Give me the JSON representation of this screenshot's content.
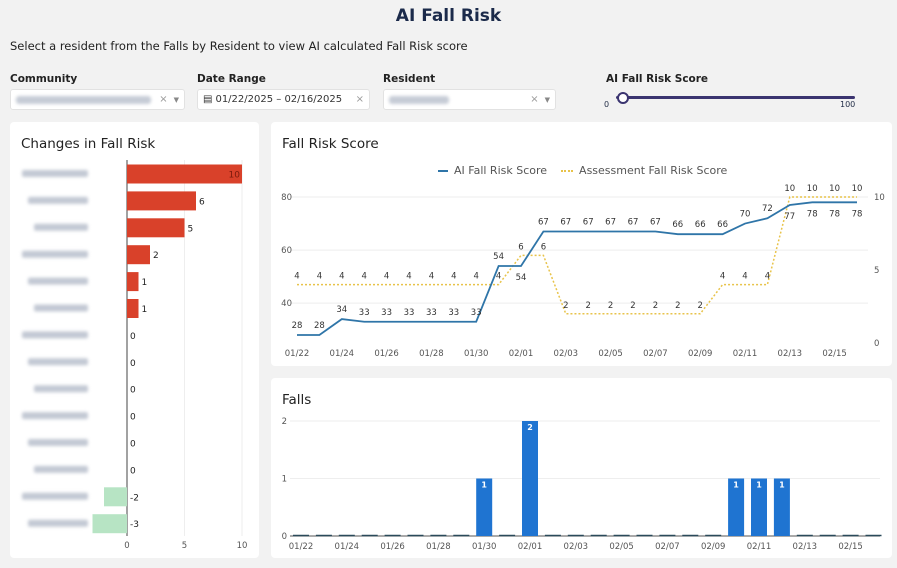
{
  "header": {
    "title": "AI Fall Risk",
    "subtitle": "Select a resident from the Falls by Resident to view AI calculated Fall Risk score"
  },
  "filters": {
    "community": {
      "label": "Community"
    },
    "date_range": {
      "label": "Date Range",
      "value": "01/22/2025 – 02/16/2025",
      "icon": "calendar-icon"
    },
    "resident": {
      "label": "Resident"
    },
    "score_slider": {
      "label": "AI Fall Risk Score",
      "min_label": "0",
      "max_label": "100",
      "value": 0,
      "min": 0,
      "max": 100
    }
  },
  "colors": {
    "increase": "#d9412a",
    "decrease": "#b7e4c4",
    "ai_line": "#2f75a8",
    "assessment_line": "#e8c34a",
    "falls_bar": "#1f74d1"
  },
  "chart_data": [
    {
      "type": "bar",
      "title": "Changes in Fall Risk",
      "orientation": "horizontal",
      "values": [
        10,
        6,
        5,
        2,
        1,
        1,
        0,
        0,
        0,
        0,
        0,
        0,
        -2,
        -3
      ],
      "xticks": [
        "0",
        "5",
        "10"
      ],
      "xlim": [
        -3.5,
        10
      ]
    },
    {
      "type": "line",
      "title": "Fall Risk Score",
      "x": [
        "01/22",
        "01/23",
        "01/24",
        "01/25",
        "01/26",
        "01/27",
        "01/28",
        "01/29",
        "01/30",
        "01/31",
        "02/01",
        "02/02",
        "02/03",
        "02/04",
        "02/05",
        "02/06",
        "02/07",
        "02/08",
        "02/09",
        "02/10",
        "02/11",
        "02/12",
        "02/13",
        "02/14",
        "02/15",
        "02/16"
      ],
      "xticks": [
        "01/22",
        "01/24",
        "01/26",
        "01/28",
        "01/30",
        "02/01",
        "02/03",
        "02/05",
        "02/07",
        "02/09",
        "02/11",
        "02/13",
        "02/15"
      ],
      "series": [
        {
          "name": "AI Fall Risk Score",
          "axis": "left",
          "values": [
            28,
            28,
            34,
            33,
            33,
            33,
            33,
            33,
            33,
            54,
            54,
            67,
            67,
            67,
            67,
            67,
            67,
            66,
            66,
            66,
            70,
            72,
            77,
            78,
            78,
            78
          ]
        },
        {
          "name": "Assessment Fall Risk Score",
          "axis": "right",
          "values": [
            4,
            4,
            4,
            4,
            4,
            4,
            4,
            4,
            4,
            4,
            6,
            6,
            2,
            2,
            2,
            2,
            2,
            2,
            2,
            4,
            4,
            4,
            10,
            10,
            10,
            10
          ]
        }
      ],
      "yticks_left": [
        "40",
        "60",
        "80"
      ],
      "ylim_left": [
        25,
        80
      ],
      "yticks_right": [
        "0",
        "5",
        "10"
      ],
      "ylim_right": [
        0,
        10
      ]
    },
    {
      "type": "bar",
      "title": "Falls",
      "x": [
        "01/22",
        "01/23",
        "01/24",
        "01/25",
        "01/26",
        "01/27",
        "01/28",
        "01/29",
        "01/30",
        "01/31",
        "02/01",
        "02/02",
        "02/03",
        "02/04",
        "02/05",
        "02/06",
        "02/07",
        "02/08",
        "02/09",
        "02/10",
        "02/11",
        "02/12",
        "02/13",
        "02/14",
        "02/15",
        "02/16"
      ],
      "values": [
        0,
        0,
        0,
        0,
        0,
        0,
        0,
        0,
        1,
        0,
        2,
        0,
        0,
        0,
        0,
        0,
        0,
        0,
        0,
        1,
        1,
        1,
        0,
        0,
        0,
        0
      ],
      "yticks": [
        "0",
        "1",
        "2"
      ],
      "ylim": [
        0,
        2
      ]
    }
  ]
}
